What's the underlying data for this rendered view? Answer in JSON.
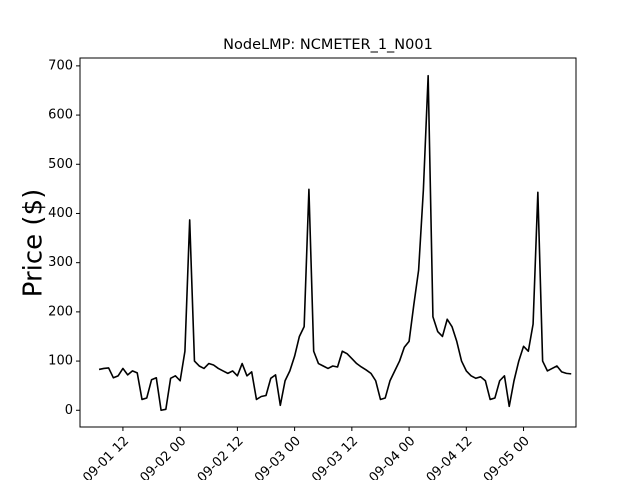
{
  "chart_data": {
    "type": "line",
    "title": "NodeLMP: NCMETER_1_N001",
    "y_label": "Price ($)",
    "x": [
      "09-01 07",
      "09-01 08",
      "09-01 09",
      "09-01 10",
      "09-01 11",
      "09-01 12",
      "09-01 13",
      "09-01 14",
      "09-01 15",
      "09-01 16",
      "09-01 17",
      "09-01 18",
      "09-01 19",
      "09-01 20",
      "09-01 21",
      "09-01 22",
      "09-01 23",
      "09-02 00",
      "09-02 01",
      "09-02 02",
      "09-02 03",
      "09-02 04",
      "09-02 05",
      "09-02 06",
      "09-02 07",
      "09-02 08",
      "09-02 09",
      "09-02 10",
      "09-02 11",
      "09-02 12",
      "09-02 13",
      "09-02 14",
      "09-02 15",
      "09-02 16",
      "09-02 17",
      "09-02 18",
      "09-02 19",
      "09-02 20",
      "09-02 21",
      "09-02 22",
      "09-02 23",
      "09-03 00",
      "09-03 01",
      "09-03 02",
      "09-03 03",
      "09-03 04",
      "09-03 05",
      "09-03 06",
      "09-03 07",
      "09-03 08",
      "09-03 09",
      "09-03 10",
      "09-03 11",
      "09-03 12",
      "09-03 13",
      "09-03 14",
      "09-03 15",
      "09-03 16",
      "09-03 17",
      "09-03 18",
      "09-03 19",
      "09-03 20",
      "09-03 21",
      "09-03 22",
      "09-03 23",
      "09-04 00",
      "09-04 01",
      "09-04 02",
      "09-04 03",
      "09-04 04",
      "09-04 05",
      "09-04 06",
      "09-04 07",
      "09-04 08",
      "09-04 09",
      "09-04 10",
      "09-04 11",
      "09-04 12",
      "09-04 13",
      "09-04 14",
      "09-04 15",
      "09-04 16",
      "09-04 17",
      "09-04 18",
      "09-04 19",
      "09-04 20",
      "09-04 21",
      "09-04 22",
      "09-04 23",
      "09-05 00",
      "09-05 01",
      "09-05 02",
      "09-05 03",
      "09-05 04",
      "09-05 05",
      "09-05 06",
      "09-05 07",
      "09-05 08",
      "09-05 09",
      "09-05 10"
    ],
    "series": [
      {
        "color": "#000000",
        "values": [
          83,
          85,
          86,
          66,
          70,
          85,
          72,
          80,
          76,
          22,
          25,
          62,
          66,
          0,
          2,
          65,
          70,
          60,
          120,
          387,
          100,
          90,
          85,
          95,
          92,
          85,
          80,
          75,
          80,
          70,
          95,
          70,
          78,
          22,
          28,
          30,
          65,
          72,
          10,
          60,
          80,
          110,
          150,
          170,
          449,
          120,
          95,
          90,
          85,
          90,
          88,
          120,
          115,
          105,
          95,
          88,
          82,
          75,
          60,
          22,
          25,
          60,
          80,
          100,
          128,
          140,
          215,
          285,
          448,
          680,
          190,
          160,
          150,
          185,
          170,
          140,
          100,
          80,
          70,
          65,
          68,
          60,
          22,
          25,
          60,
          70,
          8,
          60,
          100,
          130,
          120,
          175,
          443,
          100,
          80,
          85,
          90,
          78,
          75,
          74
        ]
      }
    ],
    "xlim": [
      "09-01 03",
      "09-05 11"
    ],
    "xticks": [
      "09-01 12",
      "09-02 00",
      "09-02 12",
      "09-03 00",
      "09-03 12",
      "09-04 00",
      "09-04 12",
      "09-05 00"
    ],
    "ylim": [
      -34,
      716
    ],
    "yticks": [
      0,
      100,
      200,
      300,
      400,
      500,
      600,
      700
    ]
  }
}
